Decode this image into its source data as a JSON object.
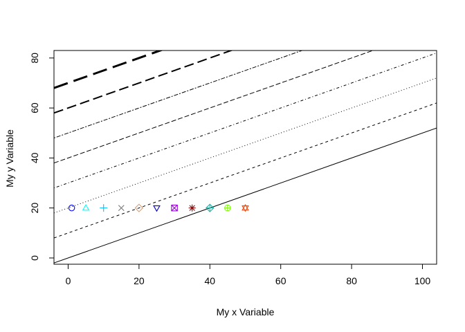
{
  "chart_data": {
    "type": "line",
    "title": "",
    "xlabel": "My x Variable",
    "ylabel": "My y Variable",
    "xlim": [
      -4,
      104
    ],
    "ylim": [
      -2.5,
      83
    ],
    "x_ticks": [
      0,
      20,
      40,
      60,
      80,
      100
    ],
    "y_ticks": [
      0,
      20,
      40,
      60,
      80
    ],
    "x_tick_labels": [
      "0",
      "20",
      "40",
      "60",
      "80",
      "100"
    ],
    "y_tick_labels": [
      "0",
      "20",
      "40",
      "60",
      "80"
    ],
    "grid": false,
    "lines": [
      {
        "intercept": 0,
        "slope": 0.5,
        "dash": "solid",
        "width": 1
      },
      {
        "intercept": 10,
        "slope": 0.5,
        "dash": "dashed",
        "width": 1
      },
      {
        "intercept": 20,
        "slope": 0.5,
        "dash": "dotted",
        "width": 1
      },
      {
        "intercept": 30,
        "slope": 0.5,
        "dash": "dotdash",
        "width": 1
      },
      {
        "intercept": 40,
        "slope": 0.5,
        "dash": "longdash",
        "width": 1
      },
      {
        "intercept": 50,
        "slope": 0.5,
        "dash": "twodash",
        "width": 1
      },
      {
        "intercept": 60,
        "slope": 0.5,
        "dash": "longdash",
        "width": 2
      },
      {
        "intercept": 70,
        "slope": 0.5,
        "dash": "longdash",
        "width": 3
      }
    ],
    "points": [
      {
        "x": 1,
        "y": 20,
        "shape": "circle",
        "color": "#0000FF"
      },
      {
        "x": 5,
        "y": 20,
        "shape": "triangle",
        "color": "#00FFFF"
      },
      {
        "x": 10,
        "y": 20,
        "shape": "plus",
        "color": "#00BFFF"
      },
      {
        "x": 15,
        "y": 20,
        "shape": "cross",
        "color": "#808080"
      },
      {
        "x": 20,
        "y": 20,
        "shape": "diamond",
        "color": "#D2A07A"
      },
      {
        "x": 25,
        "y": 20,
        "shape": "triangle-down",
        "color": "#0000CD"
      },
      {
        "x": 30,
        "y": 20,
        "shape": "square-cross",
        "color": "#9400D3"
      },
      {
        "x": 35,
        "y": 20,
        "shape": "asterisk",
        "color": "#8B0000"
      },
      {
        "x": 40,
        "y": 20,
        "shape": "diamond-plus",
        "color": "#20B2AA"
      },
      {
        "x": 45,
        "y": 20,
        "shape": "circle-plus",
        "color": "#7CFC00"
      },
      {
        "x": 50,
        "y": 20,
        "shape": "star-of-david",
        "color": "#FF4500"
      }
    ]
  }
}
